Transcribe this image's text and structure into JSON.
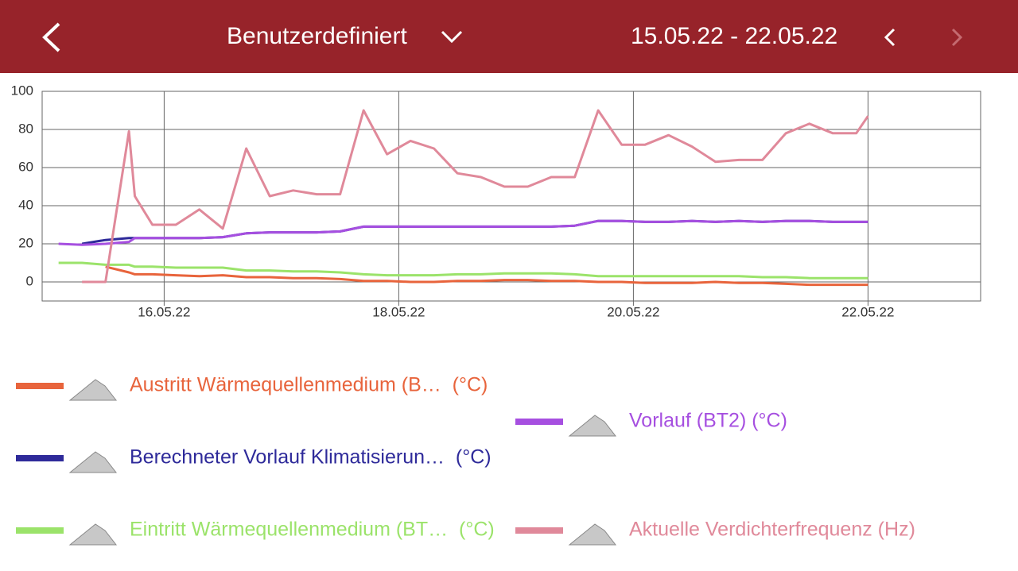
{
  "header": {
    "title": "Benutzerdefiniert",
    "date_range": "15.05.22 - 22.05.22"
  },
  "chart_data": {
    "type": "line",
    "x": [
      15.1,
      15.3,
      15.5,
      15.7,
      15.75,
      15.9,
      16.1,
      16.3,
      16.5,
      16.7,
      16.9,
      17.1,
      17.3,
      17.5,
      17.7,
      17.9,
      18.1,
      18.3,
      18.5,
      18.7,
      18.9,
      19.1,
      19.3,
      19.5,
      19.7,
      19.9,
      20.1,
      20.3,
      20.5,
      20.7,
      20.9,
      21.1,
      21.3,
      21.5,
      21.7,
      21.9,
      22.0
    ],
    "xlim": [
      14.96,
      22.96
    ],
    "xticks": [
      {
        "value": 16,
        "label": "16.05.22"
      },
      {
        "value": 18,
        "label": "18.05.22"
      },
      {
        "value": 20,
        "label": "20.05.22"
      },
      {
        "value": 22,
        "label": "22.05.22"
      }
    ],
    "ylim": [
      -10,
      100
    ],
    "yticks": [
      0,
      20,
      40,
      60,
      80,
      100
    ],
    "grid": true,
    "series": [
      {
        "name": "Austritt Wärmequellenmedium (B…  (°C)",
        "color": "#e8643c",
        "values": [
          null,
          null,
          8,
          5,
          4,
          4,
          3.5,
          3,
          3.5,
          2.5,
          2.5,
          2,
          2,
          1.5,
          0.5,
          0.5,
          0,
          0,
          0.5,
          0.5,
          1,
          1,
          0.5,
          0.5,
          0,
          0,
          -0.5,
          -0.5,
          -0.5,
          0,
          -0.5,
          -0.5,
          -1,
          -1.5,
          -1.5,
          -1.5,
          -1.5
        ]
      },
      {
        "name": "Vorlauf (BT2) (°C)",
        "color": "#a64fe0",
        "values": [
          20,
          19.5,
          20,
          21,
          23,
          23,
          23,
          23,
          23.5,
          25.5,
          26,
          26,
          26,
          26.5,
          29,
          29,
          29,
          29,
          29,
          29,
          29,
          29,
          29,
          29.5,
          32,
          32,
          31.5,
          31.5,
          32,
          31.5,
          32,
          31.5,
          32,
          32,
          31.5,
          31.5,
          31.5
        ]
      },
      {
        "name": "Berechneter Vorlauf Klimatisierun…  (°C)",
        "color": "#2e2a9a",
        "values": [
          null,
          20,
          22,
          23,
          23,
          23,
          23,
          23,
          23.5,
          25.5,
          26,
          26,
          26,
          26.5,
          29,
          29,
          29,
          29,
          29,
          29,
          29,
          29,
          29,
          29.5,
          32,
          32,
          31.5,
          31.5,
          32,
          31.5,
          32,
          31.5,
          32,
          32,
          31.5,
          31.5,
          31.5
        ]
      },
      {
        "name": "Eintritt Wärmequellenmedium (BT…  (°C)",
        "color": "#9be36a",
        "values": [
          10,
          10,
          9,
          9,
          8,
          8,
          7.5,
          7.5,
          7.5,
          6,
          6,
          5.5,
          5.5,
          5,
          4,
          3.5,
          3.5,
          3.5,
          4,
          4,
          4.5,
          4.5,
          4.5,
          4,
          3,
          3,
          3,
          3,
          3,
          3,
          3,
          2.5,
          2.5,
          2,
          2,
          2,
          2
        ]
      },
      {
        "name": "Aktuelle Verdichterfrequenz (Hz)",
        "color": "#e0899a",
        "values": [
          null,
          0,
          0,
          79,
          45,
          30,
          30,
          38,
          28,
          70,
          45,
          48,
          46,
          46,
          90,
          67,
          74,
          70,
          57,
          55,
          50,
          50,
          55,
          55,
          90,
          72,
          72,
          77,
          71,
          63,
          64,
          64,
          78,
          83,
          78,
          78,
          87
        ]
      }
    ]
  }
}
